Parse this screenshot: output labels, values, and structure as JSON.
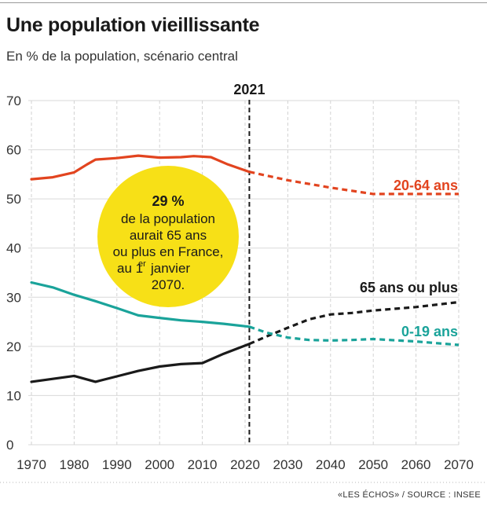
{
  "header": {
    "title": "Une population vieillissante",
    "subtitle": "En % de la population, scénario central"
  },
  "footer": {
    "source": "«LES ÉCHOS» / SOURCE : INSEE"
  },
  "chart_data": {
    "type": "line",
    "title": "Une population vieillissante",
    "subtitle": "En % de la population, scénario central",
    "xlabel": "",
    "ylabel": "",
    "xlim": [
      1970,
      2070
    ],
    "ylim": [
      0,
      70
    ],
    "x_ticks": [
      1970,
      1980,
      1990,
      2000,
      2010,
      2020,
      2030,
      2040,
      2050,
      2060,
      2070
    ],
    "y_ticks": [
      0,
      10,
      20,
      30,
      40,
      50,
      60,
      70
    ],
    "grid": "vertical dashed",
    "split_year": 2021,
    "split_label": "2021",
    "series": [
      {
        "name": "20-64 ans",
        "color": "#e2441f",
        "x": [
          1970,
          1975,
          1980,
          1983,
          1985,
          1990,
          1995,
          2000,
          2005,
          2008,
          2012,
          2016,
          2021,
          2030,
          2040,
          2050,
          2060,
          2070
        ],
        "values": [
          54,
          54.4,
          55.4,
          57,
          58,
          58.3,
          58.8,
          58.4,
          58.5,
          58.7,
          58.5,
          57,
          55.5,
          53.8,
          52.3,
          51,
          51,
          51
        ]
      },
      {
        "name": "65 ans ou plus",
        "color": "#1a1a1a",
        "x": [
          1970,
          1975,
          1980,
          1985,
          1990,
          1995,
          2000,
          2005,
          2010,
          2015,
          2021,
          2025,
          2030,
          2035,
          2040,
          2045,
          2050,
          2060,
          2070
        ],
        "values": [
          12.8,
          13.4,
          14,
          12.8,
          13.9,
          15,
          15.9,
          16.4,
          16.6,
          18.5,
          20.5,
          22,
          23.8,
          25.5,
          26.5,
          26.8,
          27.3,
          28,
          29
        ]
      },
      {
        "name": "0-19 ans",
        "color": "#1aa39a",
        "x": [
          1970,
          1975,
          1980,
          1985,
          1990,
          1995,
          2000,
          2005,
          2010,
          2015,
          2021,
          2025,
          2030,
          2035,
          2040,
          2045,
          2050,
          2060,
          2070
        ],
        "values": [
          33,
          32,
          30.5,
          29.2,
          27.8,
          26.3,
          25.8,
          25.3,
          25,
          24.6,
          24,
          22.8,
          21.8,
          21.3,
          21.2,
          21.3,
          21.5,
          21,
          20.3
        ]
      }
    ],
    "annotation": {
      "highlight": "29 %",
      "lines": [
        "de la population",
        "aurait 65 ans",
        "ou plus en France,",
        "au 1",
        "janvier",
        "2070."
      ],
      "superscript": "er",
      "color": "#f7e017"
    }
  }
}
